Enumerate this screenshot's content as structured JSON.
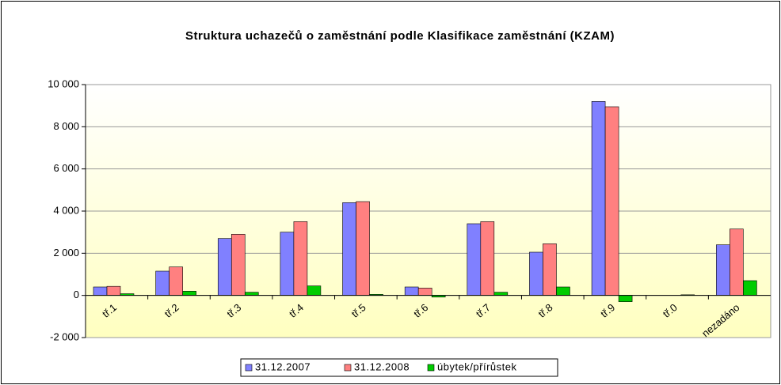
{
  "chart_data": {
    "type": "bar",
    "title": "Struktura uchazečů o zaměstnání podle Klasifikace zaměstnání (KZAM)",
    "categories": [
      "tř.1",
      "tř.2",
      "tř.3",
      "tř.4",
      "tř.5",
      "tř.6",
      "tř.7",
      "tř.8",
      "tř.9",
      "tř.0",
      "nezadáno"
    ],
    "series": [
      {
        "name": "31.12.2007",
        "color": "#8080ff",
        "values": [
          400,
          1150,
          2700,
          3000,
          4400,
          400,
          3400,
          2050,
          9200,
          0,
          2400
        ]
      },
      {
        "name": "31.12.2008",
        "color": "#ff8080",
        "values": [
          430,
          1350,
          2900,
          3500,
          4450,
          350,
          3500,
          2450,
          8950,
          0,
          3150
        ]
      },
      {
        "name": "úbytek/přírůstek",
        "color": "#00cc00",
        "values": [
          80,
          200,
          150,
          450,
          50,
          -80,
          150,
          400,
          -300,
          30,
          700
        ]
      }
    ],
    "ylim": [
      -2000,
      10000
    ],
    "yticks": [
      {
        "value": -2000,
        "label": "-2 000"
      },
      0,
      {
        "value": 2000,
        "label": "2 000"
      },
      {
        "value": 4000,
        "label": "4 000"
      },
      {
        "value": 6000,
        "label": "6 000"
      },
      {
        "value": 8000,
        "label": "8 000"
      },
      {
        "value": 10000,
        "label": "10 000"
      }
    ],
    "grid": true,
    "legend": "bottom"
  }
}
